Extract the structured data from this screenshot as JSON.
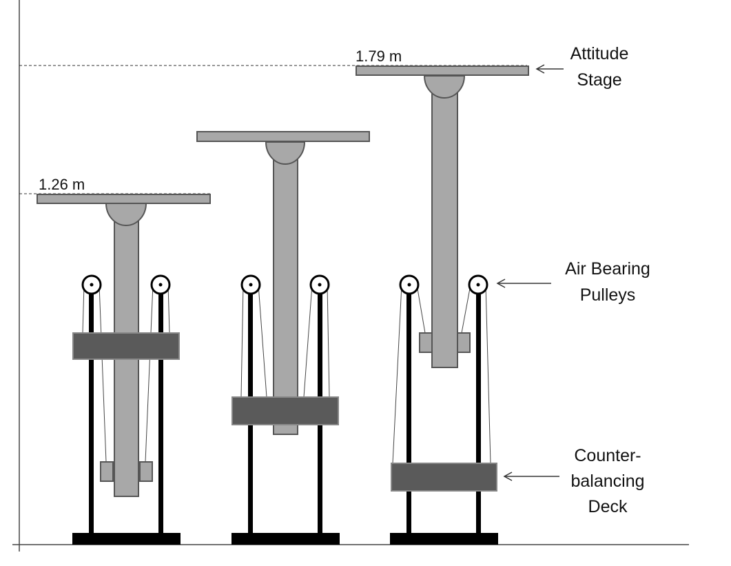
{
  "dimensions": {
    "low_height": "1.26 m",
    "high_height": "1.79 m"
  },
  "labels": {
    "attitude_stage": [
      "Attitude",
      "Stage"
    ],
    "air_bearing_pulleys": [
      "Air Bearing",
      "Pulleys"
    ],
    "counter_balancing_deck": [
      "Counter-",
      "balancing",
      "Deck"
    ]
  },
  "colors": {
    "platform_fill": "#a8a8a8",
    "deck_fill": "#5a5a5a",
    "frame": "#000000",
    "outline": "#555555"
  }
}
